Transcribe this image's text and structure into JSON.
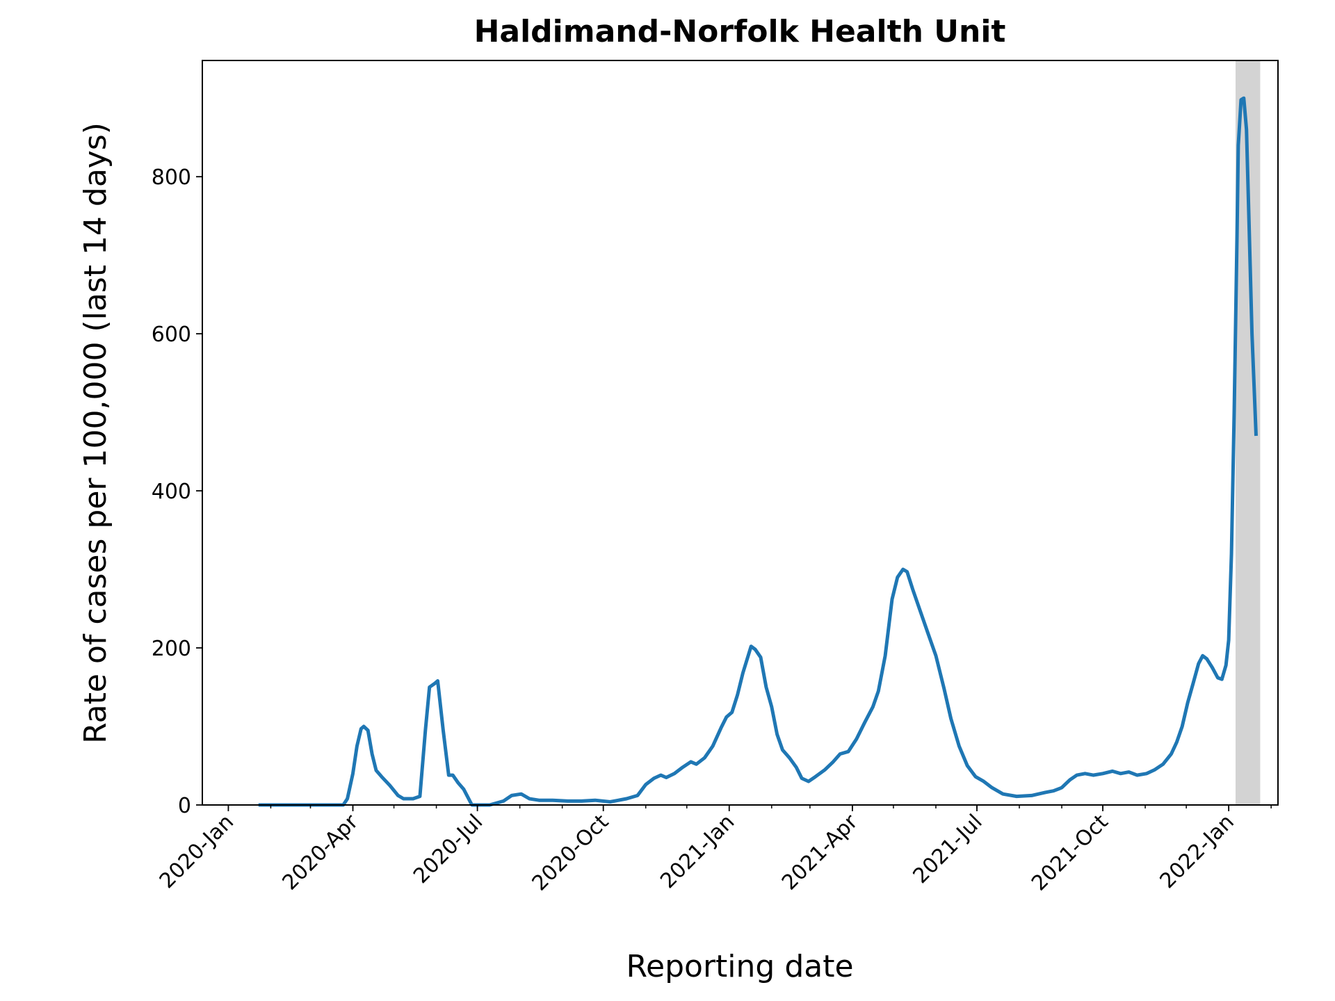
{
  "chart_data": {
    "type": "line",
    "title": "Haldimand-Norfolk Health Unit",
    "xlabel": "Reporting date",
    "ylabel": "Rate of cases per 100,000 (last 14 days)",
    "xlim": [
      "2019-12-13",
      "2022-02-06"
    ],
    "ylim": [
      0,
      948
    ],
    "x_ticks": [
      {
        "date": "2020-01-01",
        "label": "2020-Jan"
      },
      {
        "date": "2020-04-01",
        "label": "2020-Apr"
      },
      {
        "date": "2020-07-01",
        "label": "2020-Jul"
      },
      {
        "date": "2020-10-01",
        "label": "2020-Oct"
      },
      {
        "date": "2021-01-01",
        "label": "2021-Jan"
      },
      {
        "date": "2021-04-01",
        "label": "2021-Apr"
      },
      {
        "date": "2021-07-01",
        "label": "2021-Jul"
      },
      {
        "date": "2021-10-01",
        "label": "2021-Oct"
      },
      {
        "date": "2022-01-01",
        "label": "2022-Jan"
      }
    ],
    "y_ticks": [
      0,
      200,
      400,
      600,
      800
    ],
    "shaded_region": {
      "start": "2022-01-06",
      "end": "2022-01-24",
      "color": "#d3d3d3"
    },
    "grid": false,
    "series": [
      {
        "color": "#1f77b4",
        "points": [
          [
            "2020-01-23",
            0
          ],
          [
            "2020-03-25",
            0
          ],
          [
            "2020-03-28",
            8
          ],
          [
            "2020-04-01",
            40
          ],
          [
            "2020-04-04",
            75
          ],
          [
            "2020-04-07",
            97
          ],
          [
            "2020-04-09",
            100
          ],
          [
            "2020-04-12",
            95
          ],
          [
            "2020-04-15",
            65
          ],
          [
            "2020-04-18",
            44
          ],
          [
            "2020-04-22",
            36
          ],
          [
            "2020-04-28",
            25
          ],
          [
            "2020-05-04",
            12
          ],
          [
            "2020-05-08",
            8
          ],
          [
            "2020-05-15",
            8
          ],
          [
            "2020-05-20",
            11
          ],
          [
            "2020-05-24",
            95
          ],
          [
            "2020-05-27",
            150
          ],
          [
            "2020-05-31",
            155
          ],
          [
            "2020-06-02",
            158
          ],
          [
            "2020-06-06",
            95
          ],
          [
            "2020-06-10",
            38
          ],
          [
            "2020-06-13",
            38
          ],
          [
            "2020-06-17",
            28
          ],
          [
            "2020-06-21",
            20
          ],
          [
            "2020-06-27",
            0
          ],
          [
            "2020-07-10",
            0
          ],
          [
            "2020-07-20",
            5
          ],
          [
            "2020-07-26",
            12
          ],
          [
            "2020-08-02",
            14
          ],
          [
            "2020-08-08",
            8
          ],
          [
            "2020-08-15",
            6
          ],
          [
            "2020-08-25",
            6
          ],
          [
            "2020-09-05",
            5
          ],
          [
            "2020-09-15",
            5
          ],
          [
            "2020-09-25",
            6
          ],
          [
            "2020-10-06",
            4
          ],
          [
            "2020-10-18",
            8
          ],
          [
            "2020-10-26",
            12
          ],
          [
            "2020-11-01",
            26
          ],
          [
            "2020-11-07",
            34
          ],
          [
            "2020-11-12",
            38
          ],
          [
            "2020-11-16",
            35
          ],
          [
            "2020-11-22",
            40
          ],
          [
            "2020-11-28",
            48
          ],
          [
            "2020-12-04",
            55
          ],
          [
            "2020-12-08",
            52
          ],
          [
            "2020-12-14",
            60
          ],
          [
            "2020-12-20",
            75
          ],
          [
            "2020-12-26",
            98
          ],
          [
            "2020-12-30",
            112
          ],
          [
            "2021-01-03",
            118
          ],
          [
            "2021-01-07",
            140
          ],
          [
            "2021-01-11",
            168
          ],
          [
            "2021-01-17",
            202
          ],
          [
            "2021-01-20",
            198
          ],
          [
            "2021-01-24",
            188
          ],
          [
            "2021-01-28",
            150
          ],
          [
            "2021-02-01",
            125
          ],
          [
            "2021-02-05",
            90
          ],
          [
            "2021-02-09",
            70
          ],
          [
            "2021-02-14",
            60
          ],
          [
            "2021-02-19",
            48
          ],
          [
            "2021-02-23",
            34
          ],
          [
            "2021-02-28",
            30
          ],
          [
            "2021-03-05",
            36
          ],
          [
            "2021-03-12",
            45
          ],
          [
            "2021-03-18",
            55
          ],
          [
            "2021-03-23",
            65
          ],
          [
            "2021-03-29",
            68
          ],
          [
            "2021-04-04",
            84
          ],
          [
            "2021-04-10",
            105
          ],
          [
            "2021-04-16",
            125
          ],
          [
            "2021-04-20",
            145
          ],
          [
            "2021-04-25",
            190
          ],
          [
            "2021-04-30",
            262
          ],
          [
            "2021-05-04",
            290
          ],
          [
            "2021-05-08",
            300
          ],
          [
            "2021-05-11",
            297
          ],
          [
            "2021-05-15",
            275
          ],
          [
            "2021-05-20",
            250
          ],
          [
            "2021-05-26",
            220
          ],
          [
            "2021-06-01",
            190
          ],
          [
            "2021-06-07",
            148
          ],
          [
            "2021-06-12",
            110
          ],
          [
            "2021-06-18",
            75
          ],
          [
            "2021-06-24",
            50
          ],
          [
            "2021-06-30",
            36
          ],
          [
            "2021-07-06",
            30
          ],
          [
            "2021-07-12",
            22
          ],
          [
            "2021-07-20",
            14
          ],
          [
            "2021-07-30",
            11
          ],
          [
            "2021-08-10",
            12
          ],
          [
            "2021-08-20",
            16
          ],
          [
            "2021-08-26",
            18
          ],
          [
            "2021-09-01",
            22
          ],
          [
            "2021-09-07",
            32
          ],
          [
            "2021-09-12",
            38
          ],
          [
            "2021-09-18",
            40
          ],
          [
            "2021-09-24",
            38
          ],
          [
            "2021-10-01",
            40
          ],
          [
            "2021-10-08",
            43
          ],
          [
            "2021-10-14",
            40
          ],
          [
            "2021-10-20",
            42
          ],
          [
            "2021-10-26",
            38
          ],
          [
            "2021-11-02",
            40
          ],
          [
            "2021-11-08",
            45
          ],
          [
            "2021-11-14",
            52
          ],
          [
            "2021-11-20",
            65
          ],
          [
            "2021-11-24",
            80
          ],
          [
            "2021-11-28",
            100
          ],
          [
            "2021-12-02",
            130
          ],
          [
            "2021-12-06",
            155
          ],
          [
            "2021-12-10",
            180
          ],
          [
            "2021-12-13",
            190
          ],
          [
            "2021-12-16",
            186
          ],
          [
            "2021-12-20",
            175
          ],
          [
            "2021-12-24",
            162
          ],
          [
            "2021-12-27",
            160
          ],
          [
            "2021-12-30",
            178
          ],
          [
            "2022-01-01",
            210
          ],
          [
            "2022-01-03",
            320
          ],
          [
            "2022-01-05",
            500
          ],
          [
            "2022-01-07",
            720
          ],
          [
            "2022-01-08",
            840
          ],
          [
            "2022-01-10",
            898
          ],
          [
            "2022-01-12",
            900
          ],
          [
            "2022-01-14",
            860
          ],
          [
            "2022-01-16",
            730
          ],
          [
            "2022-01-18",
            600
          ],
          [
            "2022-01-21",
            470
          ]
        ]
      }
    ]
  }
}
